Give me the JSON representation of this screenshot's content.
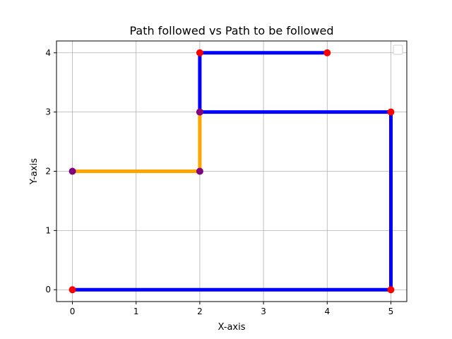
{
  "chart_data": {
    "type": "line",
    "title": "Path followed vs Path to be followed",
    "xlabel": "X-axis",
    "ylabel": "Y-axis",
    "xlim": [
      -0.25,
      5.25
    ],
    "ylim": [
      -0.2,
      4.2
    ],
    "xticks": [
      0,
      1,
      2,
      3,
      4,
      5
    ],
    "yticks": [
      0,
      1,
      2,
      3,
      4
    ],
    "grid": true,
    "legend": {
      "placement": "upper right",
      "entries": []
    },
    "series": [
      {
        "color": "#0000ff",
        "marker_color": "#ff0000",
        "points": [
          [
            0,
            0
          ],
          [
            5,
            0
          ],
          [
            5,
            3
          ],
          [
            2,
            3
          ],
          [
            2,
            4
          ],
          [
            4,
            4
          ]
        ]
      },
      {
        "color": "#ffa500",
        "marker_color": "#800080",
        "points": [
          [
            0,
            2
          ],
          [
            2,
            2
          ],
          [
            2,
            3
          ]
        ]
      }
    ]
  }
}
